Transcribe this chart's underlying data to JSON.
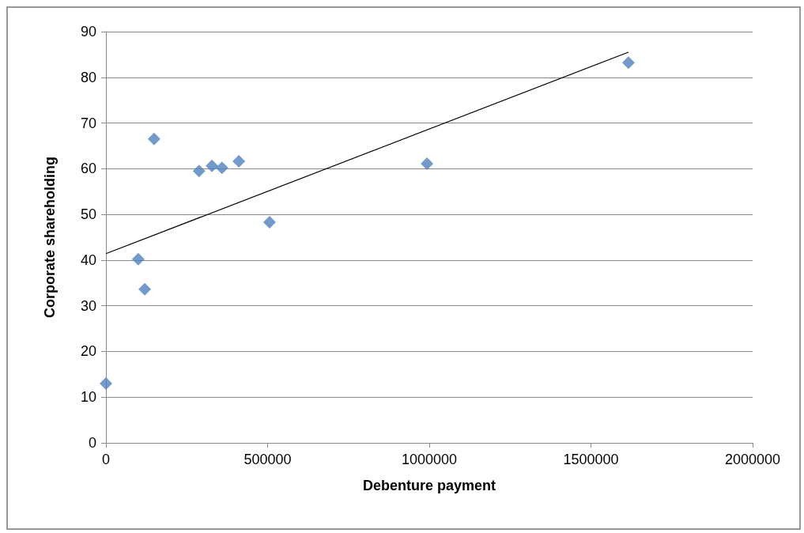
{
  "chart_data": {
    "type": "scatter",
    "xlabel": "Debenture payment",
    "ylabel": "Corporate shareholding",
    "series": [
      {
        "color": "#4f81bd",
        "marker": "diamond",
        "x": [
          0,
          100000,
          120000,
          149000,
          288000,
          328000,
          359000,
          411000,
          506000,
          993000,
          1616000
        ],
        "values": [
          13.0,
          40.2,
          33.6,
          66.5,
          59.5,
          60.6,
          60.2,
          61.6,
          48.3,
          61.1,
          83.2
        ]
      },
      {
        "type": "line",
        "color": "#000000",
        "marker": "none",
        "line_style": "solid",
        "x": [
          0,
          1616000
        ],
        "values": [
          41.4,
          85.5
        ]
      }
    ],
    "xlim": [
      0,
      2000000
    ],
    "xticks": [
      0,
      500000,
      1000000,
      1500000,
      2000000
    ],
    "ylim": [
      0,
      90
    ],
    "yticks": [
      0,
      10,
      20,
      30,
      40,
      50,
      60,
      70,
      80,
      90
    ],
    "grid": "y"
  }
}
